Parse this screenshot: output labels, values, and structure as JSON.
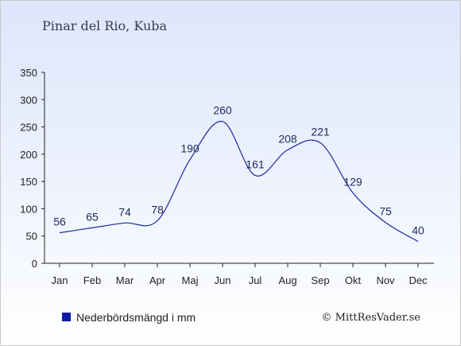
{
  "chart_data": {
    "type": "line",
    "title": "Pinar del Rio, Kuba",
    "categories": [
      "Jan",
      "Feb",
      "Mar",
      "Apr",
      "Maj",
      "Jun",
      "Jul",
      "Aug",
      "Sep",
      "Okt",
      "Nov",
      "Dec"
    ],
    "series": [
      {
        "name": "Nederbördsmängd i mm",
        "values": [
          56,
          65,
          74,
          78,
          190,
          260,
          161,
          208,
          221,
          129,
          75,
          40
        ]
      }
    ],
    "ylim": [
      0,
      350
    ],
    "yticks": [
      0,
      50,
      100,
      150,
      200,
      250,
      300,
      350
    ],
    "grid": false,
    "legend": "bottom-left",
    "line_color": "#1a2aa0",
    "legend_color": "#0a1aa8"
  },
  "credit": "© MittResVader.se"
}
